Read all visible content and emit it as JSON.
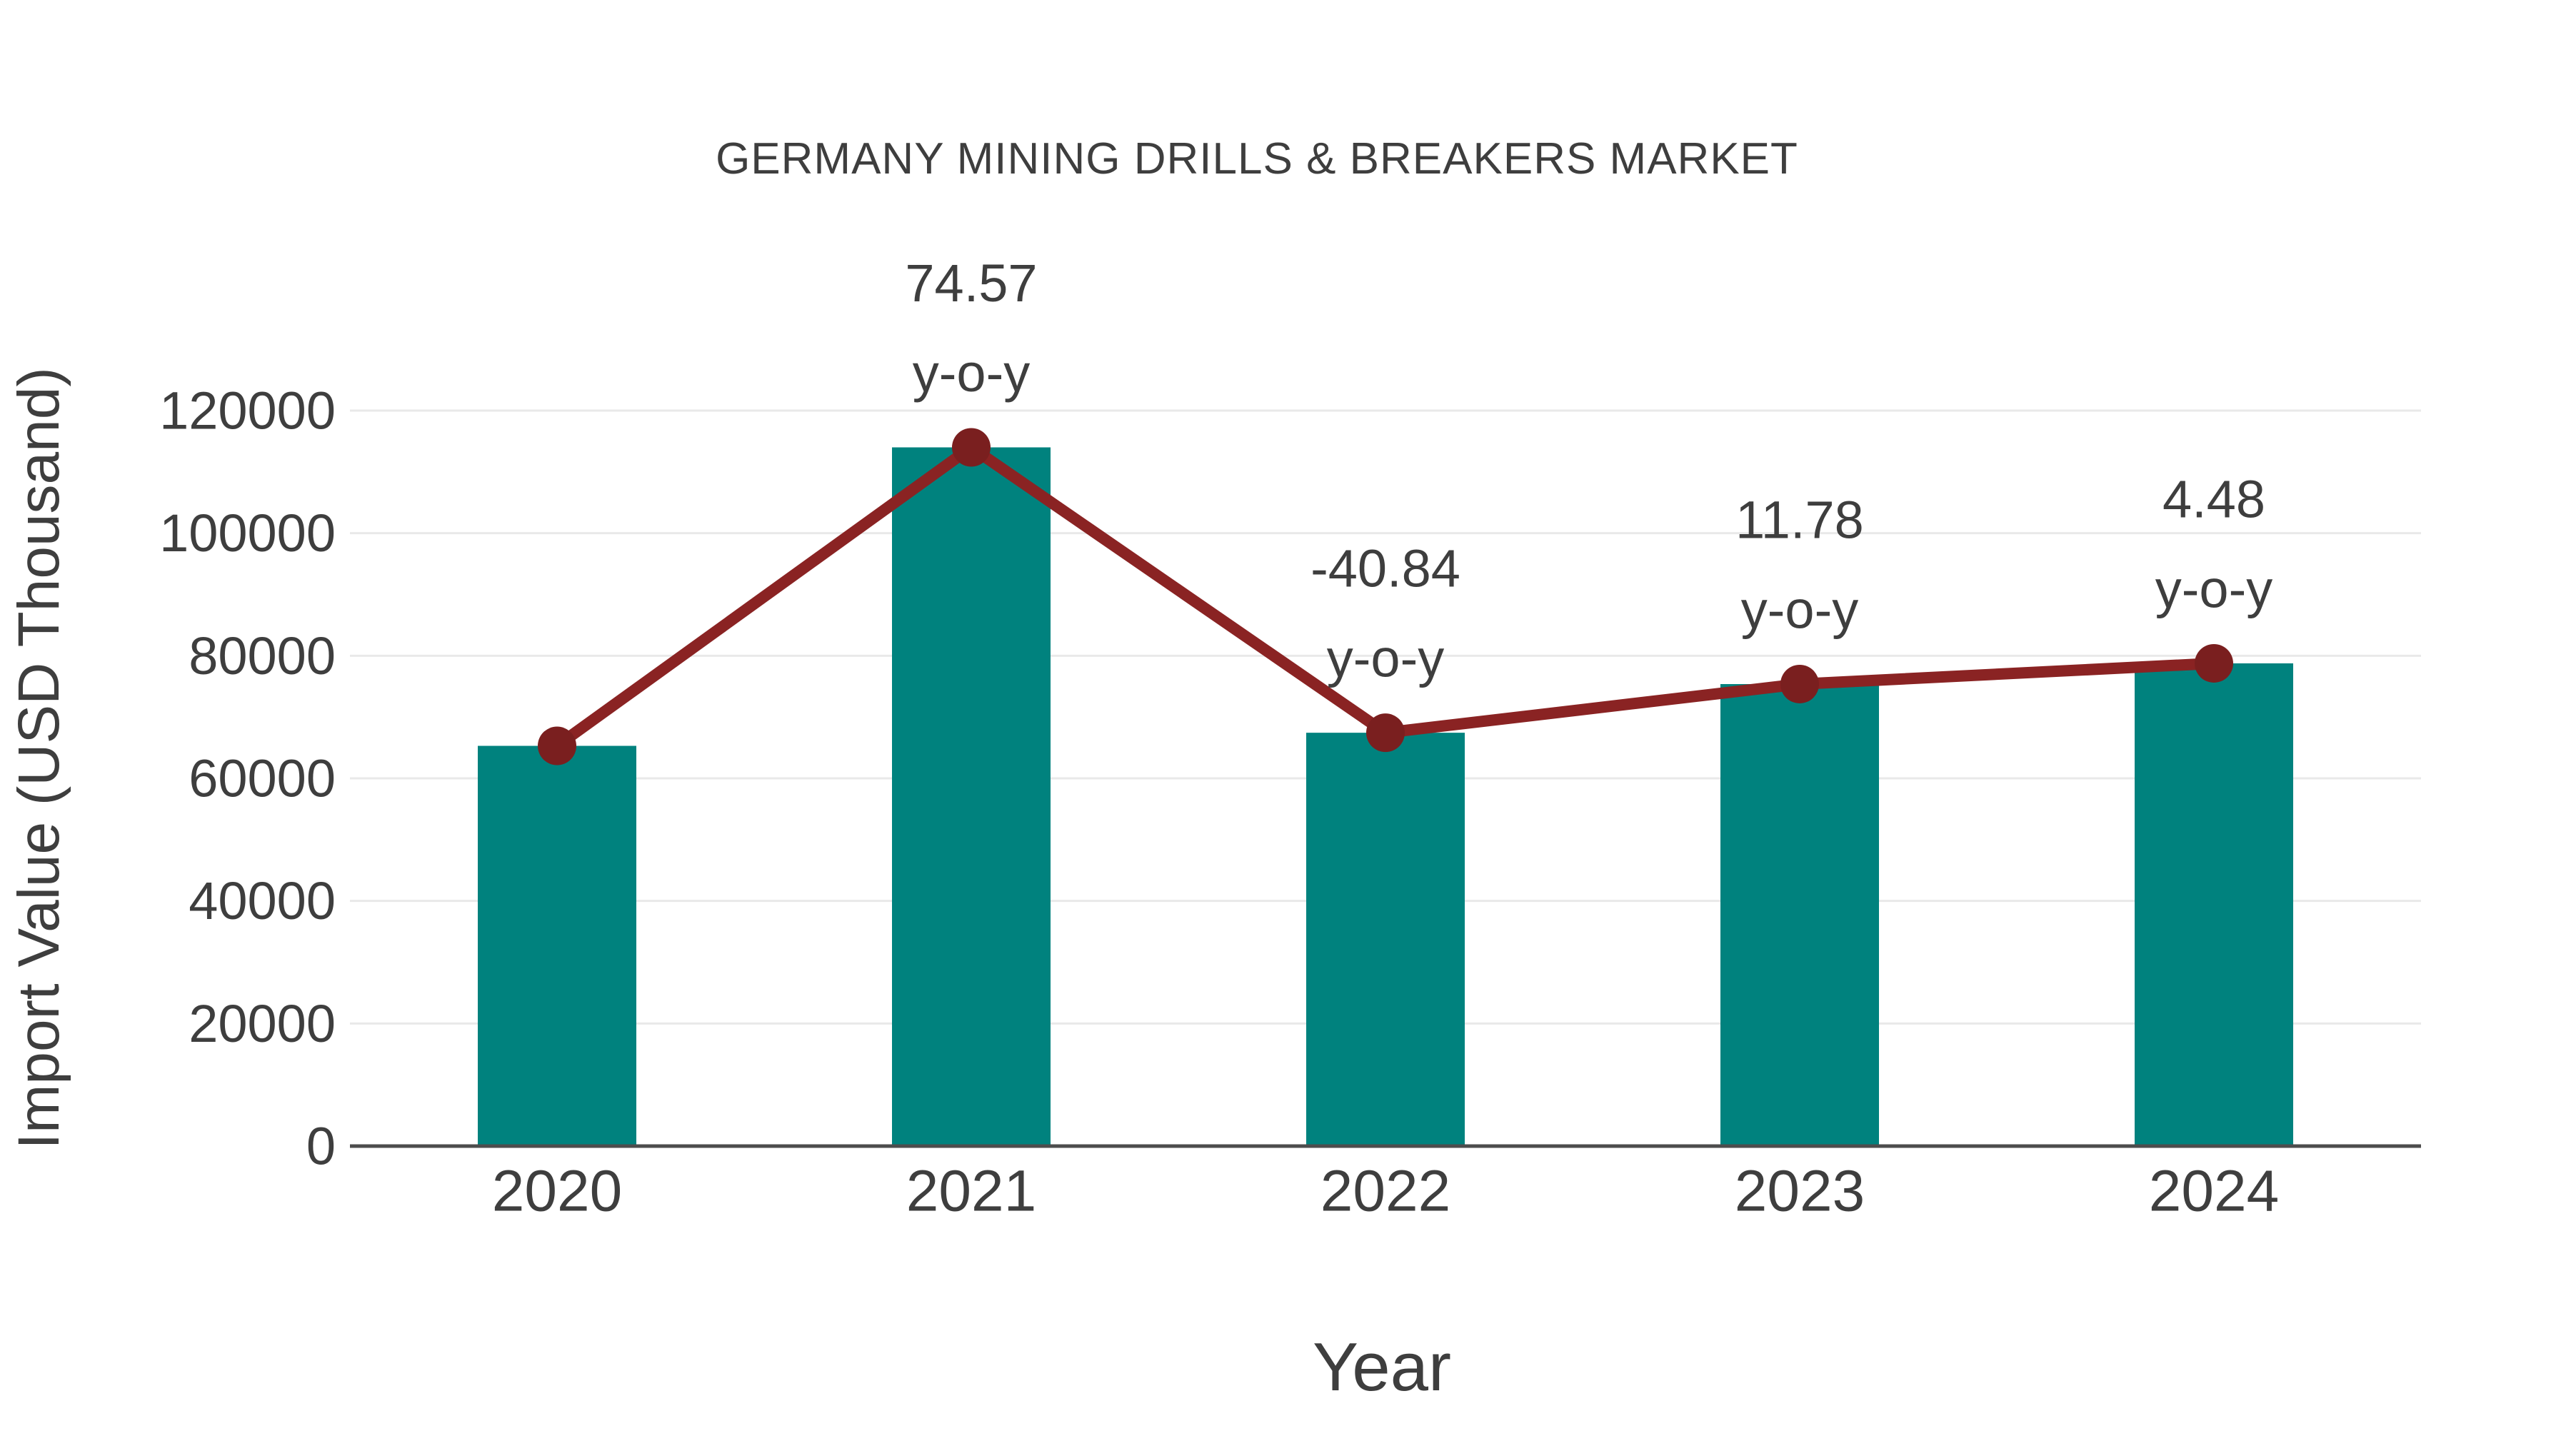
{
  "chart_data": {
    "type": "bar",
    "title": "GERMANY MINING DRILLS & BREAKERS MARKET",
    "xlabel": "Year",
    "ylabel": "Import Value (USD Thousand)",
    "categories": [
      "2020",
      "2021",
      "2022",
      "2023",
      "2024"
    ],
    "series": [
      {
        "name": "Import Value (USD Thousand)",
        "type": "bar",
        "values": [
          65300,
          114000,
          67440,
          75380,
          78760
        ]
      },
      {
        "name": "y-o-y trend line",
        "type": "line",
        "values": [
          65300,
          114000,
          67440,
          75380,
          78760
        ]
      }
    ],
    "annotations": [
      {
        "category": "2021",
        "value_label": "74.57",
        "suffix_label": "y-o-y"
      },
      {
        "category": "2022",
        "value_label": "-40.84",
        "suffix_label": "y-o-y"
      },
      {
        "category": "2023",
        "value_label": "11.78",
        "suffix_label": "y-o-y"
      },
      {
        "category": "2024",
        "value_label": "4.48",
        "suffix_label": "y-o-y"
      }
    ],
    "yticks": [
      0,
      20000,
      40000,
      60000,
      80000,
      100000,
      120000
    ],
    "ylim": [
      0,
      120000
    ],
    "grid": true,
    "legend_position": "none",
    "colors": {
      "bar": "#00827e",
      "line": "#8a2323",
      "marker": "#7a1f1f",
      "grid": "#e9e9e9",
      "axis": "#4d4d4d",
      "text": "#3e3e3e"
    }
  }
}
